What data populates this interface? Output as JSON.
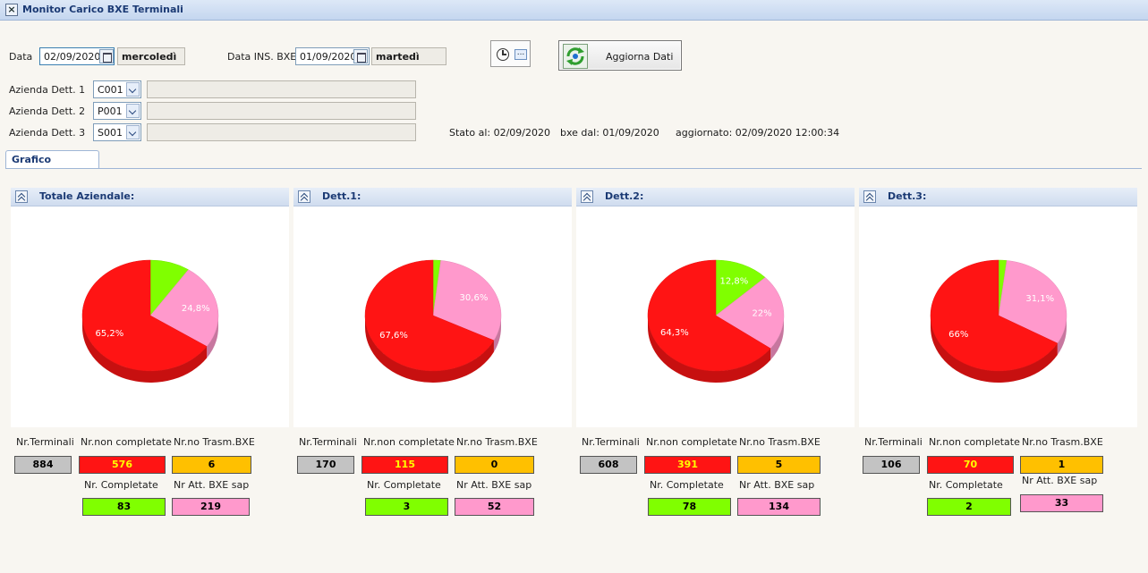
{
  "window": {
    "title": "Monitor Carico BXE Terminali"
  },
  "filters": {
    "data_label": "Data",
    "data_value": "02/09/2020",
    "data_day": "mercoledì",
    "data_ins_label": "Data INS. BXE",
    "data_ins_value": "01/09/2020",
    "data_ins_day": "martedì",
    "azienda": [
      {
        "label": "Azienda Dett. 1",
        "code": "C001",
        "description": ""
      },
      {
        "label": "Azienda Dett. 2",
        "code": "P001",
        "description": ""
      },
      {
        "label": "Azienda Dett. 3",
        "code": "S001",
        "description": ""
      }
    ]
  },
  "toolbar": {
    "refresh_label": "Aggiorna Dati"
  },
  "status": {
    "stato": "Stato al: 02/09/2020",
    "bxe_dal": "bxe dal: 01/09/2020",
    "aggiornato": "aggiornato: 02/09/2020 12:00:34"
  },
  "tabs": [
    {
      "label": "Grafico"
    }
  ],
  "colors": {
    "red": "#ff1414",
    "green": "#80ff00",
    "pink": "#ff99cc",
    "yellow": "#ffc000",
    "grey": "#c3c3c3"
  },
  "stat_labels": {
    "terminali": "Nr.Terminali",
    "non_completate": "Nr.non completate",
    "no_trasm": "Nr.no Trasm.BXE",
    "completate": "Nr. Completate",
    "att_bxe": "Nr Att. BXE sap"
  },
  "panels": [
    {
      "title": "Totale Aziendale:",
      "terminali": "884",
      "non_completate": "576",
      "no_trasm": "6",
      "completate": "83",
      "att_bxe": "219"
    },
    {
      "title": "Dett.1:",
      "terminali": "170",
      "non_completate": "115",
      "no_trasm": "0",
      "completate": "3",
      "att_bxe": "52"
    },
    {
      "title": "Dett.2:",
      "terminali": "608",
      "non_completate": "391",
      "no_trasm": "5",
      "completate": "78",
      "att_bxe": "134"
    },
    {
      "title": "Dett.3:",
      "terminali": "106",
      "non_completate": "70",
      "no_trasm": "1",
      "completate": "2",
      "att_bxe": "33"
    }
  ],
  "chart_data": [
    {
      "type": "pie",
      "title": "Totale Aziendale:",
      "slices": [
        {
          "label": "",
          "value": 9.4,
          "color": "#80ff00"
        },
        {
          "label": "24,8%",
          "value": 24.8,
          "color": "#ff99cc"
        },
        {
          "label": "65,2%",
          "value": 65.2,
          "color": "#ff1414"
        }
      ]
    },
    {
      "type": "pie",
      "title": "Dett.1:",
      "slices": [
        {
          "label": "",
          "value": 1.8,
          "color": "#80ff00"
        },
        {
          "label": "30,6%",
          "value": 30.6,
          "color": "#ff99cc"
        },
        {
          "label": "67,6%",
          "value": 67.6,
          "color": "#ff1414"
        }
      ]
    },
    {
      "type": "pie",
      "title": "Dett.2:",
      "slices": [
        {
          "label": "12,8%",
          "value": 12.8,
          "color": "#80ff00"
        },
        {
          "label": "22%",
          "value": 22,
          "color": "#ff99cc"
        },
        {
          "label": "64,3%",
          "value": 64.3,
          "color": "#ff1414"
        }
      ]
    },
    {
      "type": "pie",
      "title": "Dett.3:",
      "slices": [
        {
          "label": "",
          "value": 1.9,
          "color": "#80ff00"
        },
        {
          "label": "31,1%",
          "value": 31.1,
          "color": "#ff99cc"
        },
        {
          "label": "66%",
          "value": 66,
          "color": "#ff1414"
        }
      ]
    }
  ]
}
